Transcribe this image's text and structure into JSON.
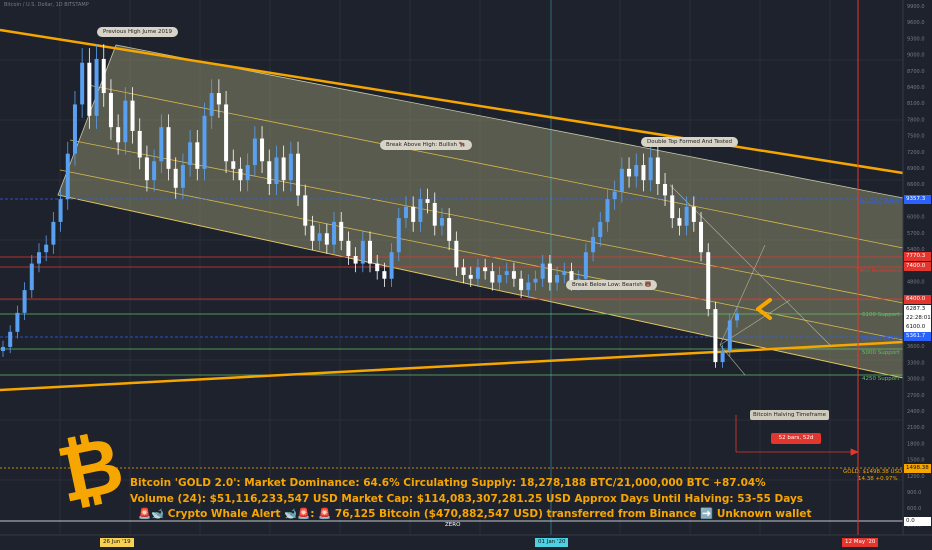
{
  "header": {
    "symbol_line": "Bitcoin / U.S. Dollar, 1D BITSTAMP"
  },
  "callouts": {
    "prev_high": "Previous High Jume 2019",
    "break_above": "Break Above High: Bullish 🐂",
    "double_top": "Double Top Formed And Tested",
    "break_below": "Break Below Low: Bearish 🐻",
    "halving_tf": "Bitcoin Halving Timeframe",
    "bars": "52 bars, 52d"
  },
  "levels": {
    "monthly_open": "Monthly OPEN",
    "resistance": "7400 Resistance",
    "support_6100": "6100 Support",
    "weekly_open": "Weekly OPEN",
    "support_5000": "5000 Support",
    "support_4250": "4250 Support",
    "zero": "ZERO"
  },
  "gold_label": {
    "line1": "GOLD: $1498.38 USD",
    "line2": "14.38 +0.97%"
  },
  "price_axis": {
    "labels": [
      "9900.0",
      "9600.0",
      "9300.0",
      "9000.0",
      "8700.0",
      "8400.0",
      "8100.0",
      "7800.0",
      "7500.0",
      "7200.0",
      "6900.0",
      "6600.0",
      "6300.0",
      "6000.0",
      "5700.0",
      "5400.0",
      "5100.0",
      "4800.0",
      "4500.0",
      "4200.0",
      "3900.0",
      "3600.0",
      "3300.0",
      "3000.0",
      "2700.0",
      "2400.0",
      "2100.0",
      "1800.0",
      "1500.0",
      "1200.0",
      "900.0",
      "600.0",
      "300.0"
    ],
    "tags": [
      {
        "text": "9357.3",
        "color": "#2962ff"
      },
      {
        "text": "7770.3",
        "color": "#e3362e"
      },
      {
        "text": "7400.0",
        "color": "#e3362e"
      },
      {
        "text": "6400.0",
        "color": "#e3362e"
      },
      {
        "text": "6287.3",
        "color": "#ffffff"
      },
      {
        "text": "22:28:01",
        "color": "#ffffff"
      },
      {
        "text": "6100.0",
        "color": "#ffffff"
      },
      {
        "text": "5361.7",
        "color": "#2962ff"
      },
      {
        "text": "1498.38",
        "color": "#f7a600"
      },
      {
        "text": "0.0",
        "color": "#ffffff"
      }
    ]
  },
  "time_axis": {
    "dates": [
      {
        "text": "26 Jun '19",
        "highlight": true
      },
      {
        "text": "01 Jan '20",
        "highlight": true
      },
      {
        "text": "12 May '20",
        "highlight": true
      }
    ]
  },
  "stats": {
    "line1": "Bitcoin 'GOLD 2.0': Market Dominance: 64.6%  Circulating Supply: 18,278,188 BTC/21,000,000 BTC +87.04%",
    "line2": "Volume (24): $51,116,233,547 USD  Market Cap: $114,083,307,281.25 USD Approx Days Until Halving: 53-55 Days",
    "line3": "🚨🐋 Crypto Whale Alert 🐋🚨:  🚨 76,125 Bitcoin ($470,882,547 USD) transferred from Binance ➡️ Unknown wallet"
  },
  "colors": {
    "background": "#1e222d",
    "up_candle": "#5aa0f0",
    "down_candle": "#ffffff",
    "channel_fill": "#8a8a6a",
    "orange_line": "#f7a600",
    "red_line": "#e3362e",
    "blue_line": "#2962ff"
  },
  "chart_data": {
    "type": "candlestick",
    "title": "",
    "x_ticks": [
      "26 Jun '19",
      "01 Jan '20",
      "12 May '20"
    ],
    "ylim": [
      0,
      10000
    ],
    "close_prices": [
      5400,
      5800,
      6300,
      6900,
      7600,
      7900,
      8100,
      8700,
      9300,
      10500,
      11800,
      12900,
      11500,
      13000,
      12100,
      11200,
      10800,
      11900,
      11100,
      10400,
      9800,
      10300,
      11200,
      10100,
      9600,
      10200,
      10800,
      10100,
      11500,
      12100,
      11800,
      10300,
      10100,
      9800,
      10200,
      10900,
      10300,
      9700,
      10400,
      9800,
      10500,
      9400,
      8600,
      8200,
      8400,
      8100,
      8700,
      8200,
      7800,
      7600,
      8200,
      7600,
      7400,
      7200,
      7900,
      8800,
      9100,
      8700,
      9300,
      9200,
      8600,
      8800,
      8200,
      7500,
      7300,
      7200,
      7500,
      7400,
      7100,
      7300,
      7400,
      7200,
      6900,
      7100,
      7200,
      7600,
      7100,
      7300,
      7400,
      7100,
      7200,
      7900,
      8300,
      8700,
      9300,
      9500,
      10100,
      9900,
      10200,
      9800,
      10400,
      9700,
      9400,
      8800,
      8600,
      9100,
      8700,
      7900,
      6400,
      5000,
      5300,
      6100,
      6287
    ]
  }
}
